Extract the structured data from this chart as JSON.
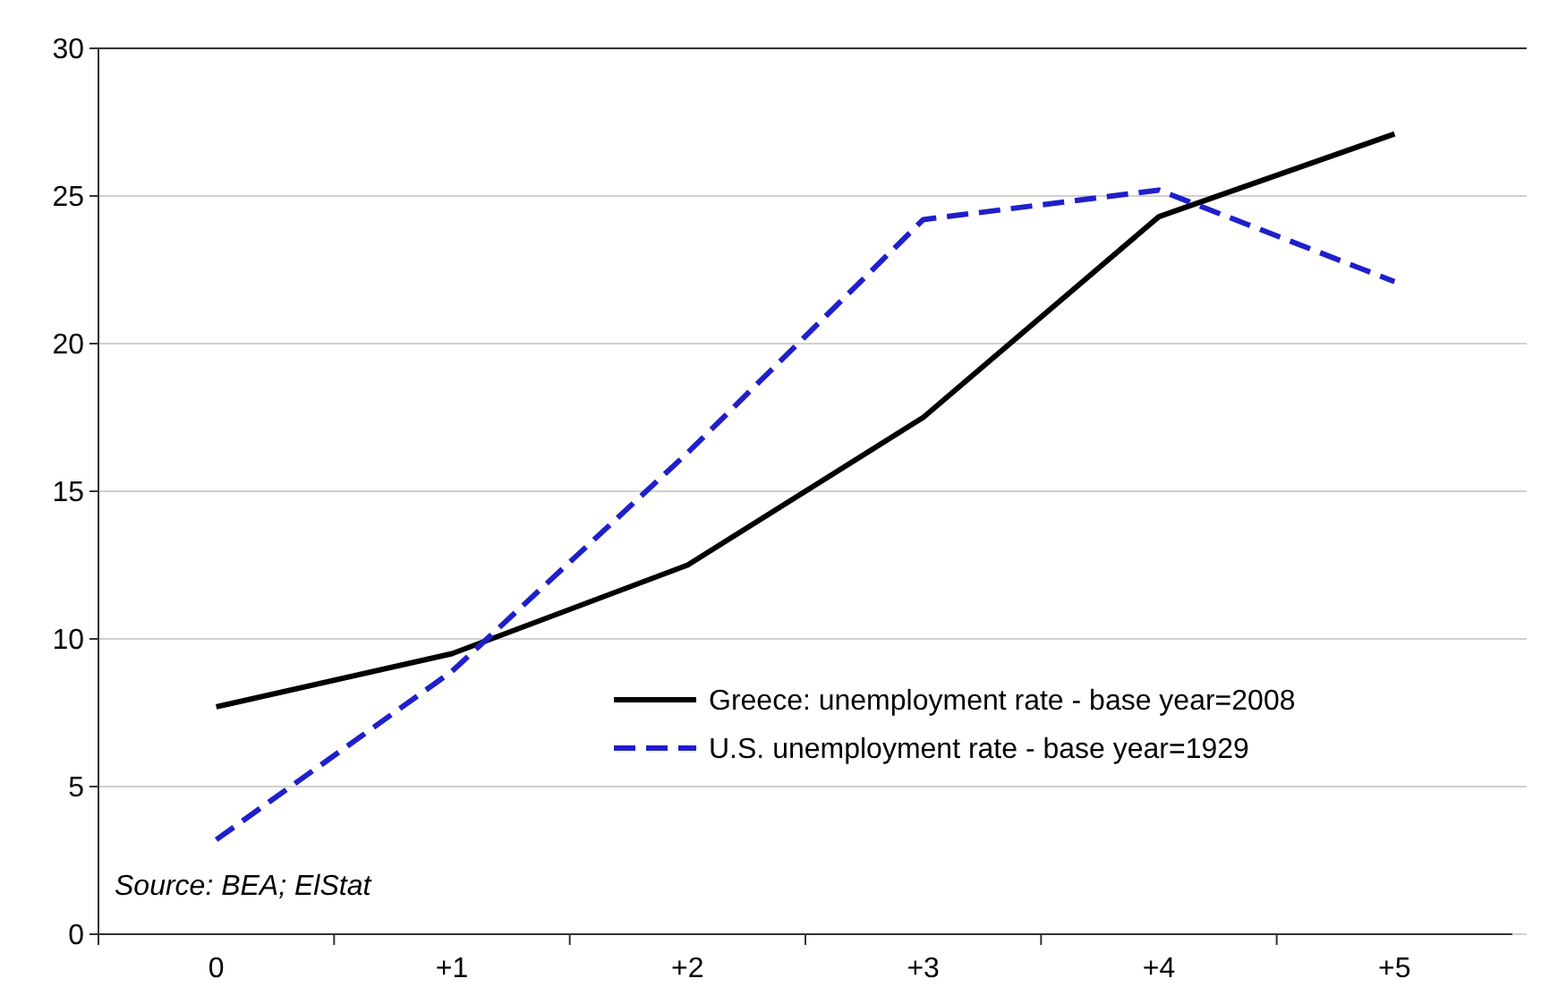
{
  "chart_data": {
    "type": "line",
    "categories": [
      "0",
      "+1",
      "+2",
      "+3",
      "+4",
      "+5"
    ],
    "series": [
      {
        "name": "Greece: unemployment rate - base year=2008",
        "color": "#000000",
        "values": [
          7.7,
          9.5,
          12.5,
          17.5,
          24.3,
          27.1
        ],
        "line_style": "solid"
      },
      {
        "name": "U.S. unemployment rate - base year=1929",
        "color": "#1f1fcc",
        "values": [
          3.2,
          8.9,
          16.3,
          24.2,
          25.2,
          22.1
        ],
        "line_style": "dashed"
      }
    ],
    "ylim": [
      0,
      30
    ],
    "yticks": [
      0,
      5,
      10,
      15,
      20,
      25,
      30
    ],
    "grid": "y",
    "legend": "bottom right",
    "marker": "none",
    "annotations": [
      "Source: BEA; ElStat"
    ]
  }
}
